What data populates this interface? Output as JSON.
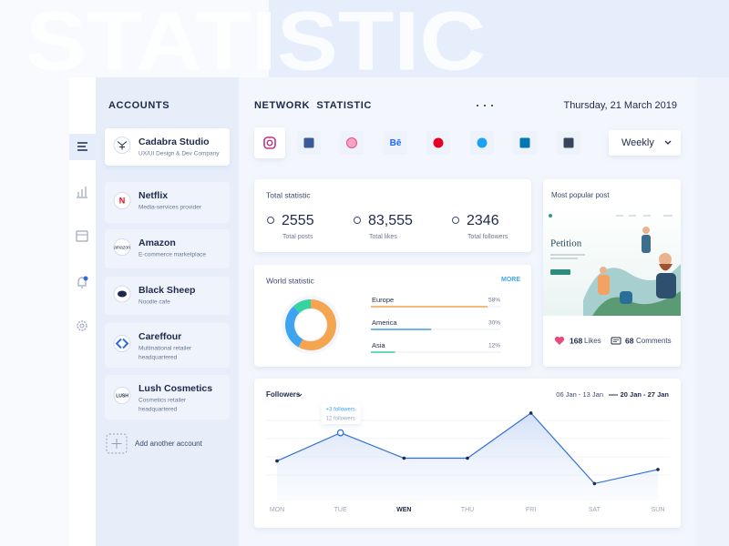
{
  "watermark": "STATISTIC",
  "accounts": {
    "title": "ACCOUNTS",
    "items": [
      {
        "name": "Cadabra Studio",
        "description": [
          "UX/UI Design & Dev Company"
        ]
      },
      {
        "name": "Netflix",
        "description": [
          "Media-services provider"
        ],
        "logo_text": "N"
      },
      {
        "name": "Amazon",
        "description": [
          "E-commerce marketplace"
        ],
        "logo_text": "amazon"
      },
      {
        "name": "Black Sheep",
        "description": [
          "Noodle cafe"
        ]
      },
      {
        "name": "Careffour",
        "description": [
          "Multinational retailer",
          "headquartered"
        ]
      },
      {
        "name": "Lush Cosmetics",
        "description": [
          "Cosmetics retailer",
          "headquartered"
        ],
        "logo_text": "LUSH"
      }
    ],
    "add": "Add another account"
  },
  "header": {
    "title": "NETWORK  STATISTIC",
    "date": "Thursday, 21 March 2019",
    "period": "Weekly",
    "behance_glyph": "Bē"
  },
  "total_statistic": {
    "title": "Total statistic",
    "items": [
      {
        "value": "2555",
        "label": "Total posts"
      },
      {
        "value": "83,555",
        "label": "Total likes"
      },
      {
        "value": "2346",
        "label": "Total followers"
      }
    ]
  },
  "world_statistic": {
    "title": "World statistic",
    "more": "MORE",
    "items": [
      {
        "name": "Europe",
        "value": 58,
        "value_label": "58%",
        "color": "#f5a54f"
      },
      {
        "name": "America",
        "value": 30,
        "value_label": "30%",
        "color": "#3ea4f0"
      },
      {
        "name": "Asia",
        "value": 12,
        "value_label": "12%",
        "color": "#35d3a0"
      }
    ]
  },
  "popular_post": {
    "title": "Most popular post",
    "image_title": "Petition",
    "likes": "168",
    "likes_label": "Likes",
    "comments": "68",
    "comments_label": "Comments"
  },
  "followers_chart": {
    "type": "line",
    "title": "Followers",
    "range_previous": "06 Jan - 13 Jan",
    "range_current": "20 Jan - 27 Jan",
    "tooltip": [
      "+3 followers",
      "12 followers"
    ],
    "categories": [
      "MON",
      "TUE",
      "WEN",
      "THU",
      "FRI",
      "SAT",
      "SUN"
    ],
    "values": [
      7,
      12,
      7.5,
      7.5,
      15.5,
      3,
      5.5
    ],
    "color": "#2f6fd6"
  }
}
